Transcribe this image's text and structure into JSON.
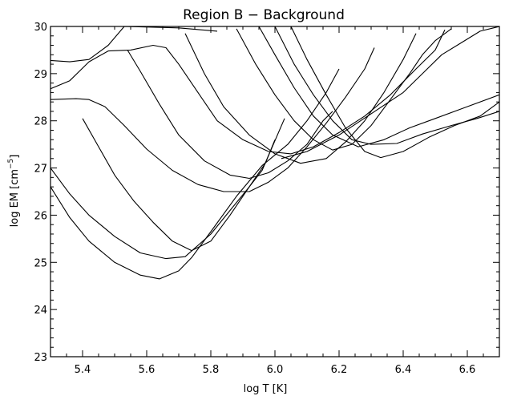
{
  "chart_data": {
    "type": "line",
    "title": "Region B − Background",
    "xlabel_main": "log T ",
    "xlabel_unit": "[K]",
    "ylabel_main": "log EM ",
    "ylabel_unit_base": "[cm",
    "ylabel_unit_exp": "−5",
    "ylabel_unit_close": "]",
    "xlim": [
      5.3,
      6.7
    ],
    "ylim": [
      23,
      30
    ],
    "xticks": [
      5.4,
      5.6,
      5.8,
      6.0,
      6.2,
      6.4,
      6.6
    ],
    "xtick_labels": [
      "5.4",
      "5.6",
      "5.8",
      "6.0",
      "6.2",
      "6.4",
      "6.6"
    ],
    "yticks": [
      23,
      24,
      25,
      26,
      27,
      28,
      29,
      30
    ],
    "ytick_labels": [
      "23",
      "24",
      "25",
      "26",
      "27",
      "28",
      "29",
      "30"
    ],
    "grid": false,
    "legend": "none",
    "line_color": "#000000",
    "series": [
      {
        "points": [
          [
            5.3,
            29.28
          ],
          [
            5.36,
            29.25
          ],
          [
            5.42,
            29.3
          ],
          [
            5.48,
            29.6
          ],
          [
            5.53,
            30.0
          ],
          [
            5.7,
            29.97
          ],
          [
            5.82,
            29.9
          ]
        ]
      },
      {
        "points": [
          [
            5.3,
            28.68
          ],
          [
            5.36,
            28.85
          ],
          [
            5.42,
            29.25
          ],
          [
            5.48,
            29.48
          ],
          [
            5.55,
            29.5
          ],
          [
            5.62,
            29.6
          ],
          [
            5.66,
            29.55
          ],
          [
            5.7,
            29.2
          ],
          [
            5.76,
            28.6
          ],
          [
            5.82,
            28.0
          ],
          [
            5.9,
            27.6
          ],
          [
            5.98,
            27.35
          ],
          [
            6.05,
            27.3
          ],
          [
            6.12,
            27.45
          ],
          [
            6.2,
            27.75
          ],
          [
            6.28,
            28.1
          ],
          [
            6.36,
            28.55
          ],
          [
            6.44,
            29.1
          ],
          [
            6.5,
            29.5
          ],
          [
            6.53,
            29.93
          ]
        ]
      },
      {
        "points": [
          [
            5.3,
            28.45
          ],
          [
            5.38,
            28.47
          ],
          [
            5.42,
            28.45
          ],
          [
            5.47,
            28.3
          ],
          [
            5.53,
            27.9
          ],
          [
            5.6,
            27.4
          ],
          [
            5.68,
            26.95
          ],
          [
            5.76,
            26.65
          ],
          [
            5.84,
            26.5
          ],
          [
            5.92,
            26.5
          ],
          [
            5.98,
            26.7
          ],
          [
            6.04,
            27.0
          ],
          [
            6.1,
            27.45
          ],
          [
            6.16,
            27.95
          ],
          [
            6.22,
            28.5
          ],
          [
            6.28,
            29.1
          ],
          [
            6.31,
            29.55
          ]
        ]
      },
      {
        "points": [
          [
            5.54,
            29.5
          ],
          [
            5.58,
            29.05
          ],
          [
            5.64,
            28.35
          ],
          [
            5.7,
            27.7
          ],
          [
            5.78,
            27.15
          ],
          [
            5.86,
            26.85
          ],
          [
            5.92,
            26.78
          ],
          [
            5.98,
            26.9
          ],
          [
            6.04,
            27.15
          ],
          [
            6.1,
            27.5
          ],
          [
            6.15,
            28.0
          ],
          [
            6.18,
            28.2
          ]
        ]
      },
      {
        "points": [
          [
            5.4,
            28.05
          ],
          [
            5.45,
            27.45
          ],
          [
            5.5,
            26.85
          ],
          [
            5.56,
            26.3
          ],
          [
            5.62,
            25.85
          ],
          [
            5.68,
            25.45
          ],
          [
            5.74,
            25.25
          ],
          [
            5.8,
            25.45
          ],
          [
            5.86,
            26.0
          ],
          [
            5.92,
            26.6
          ],
          [
            5.96,
            26.95
          ],
          [
            6.03,
            28.05
          ]
        ]
      },
      {
        "points": [
          [
            5.3,
            27.0
          ],
          [
            5.36,
            26.45
          ],
          [
            5.42,
            26.0
          ],
          [
            5.5,
            25.55
          ],
          [
            5.58,
            25.2
          ],
          [
            5.66,
            25.08
          ],
          [
            5.72,
            25.12
          ],
          [
            5.8,
            25.6
          ],
          [
            5.86,
            26.1
          ],
          [
            5.92,
            26.6
          ],
          [
            5.97,
            27.1
          ],
          [
            6.0,
            27.6
          ]
        ]
      },
      {
        "points": [
          [
            5.3,
            26.6
          ],
          [
            5.36,
            25.95
          ],
          [
            5.42,
            25.45
          ],
          [
            5.5,
            25.0
          ],
          [
            5.58,
            24.73
          ],
          [
            5.64,
            24.65
          ],
          [
            5.7,
            24.82
          ],
          [
            5.74,
            25.1
          ],
          [
            5.8,
            25.65
          ],
          [
            5.88,
            26.4
          ],
          [
            5.96,
            27.05
          ],
          [
            6.04,
            27.5
          ],
          [
            6.1,
            28.0
          ],
          [
            6.16,
            28.6
          ],
          [
            6.2,
            29.1
          ]
        ]
      },
      {
        "points": [
          [
            5.72,
            29.85
          ],
          [
            5.78,
            29.0
          ],
          [
            5.84,
            28.3
          ],
          [
            5.92,
            27.7
          ],
          [
            6.0,
            27.3
          ],
          [
            6.08,
            27.1
          ],
          [
            6.16,
            27.2
          ],
          [
            6.22,
            27.55
          ],
          [
            6.28,
            28.0
          ],
          [
            6.34,
            28.6
          ],
          [
            6.4,
            29.3
          ],
          [
            6.44,
            29.85
          ]
        ]
      },
      {
        "points": [
          [
            5.88,
            29.95
          ],
          [
            5.94,
            29.2
          ],
          [
            6.0,
            28.55
          ],
          [
            6.06,
            28.0
          ],
          [
            6.12,
            27.6
          ],
          [
            6.18,
            27.38
          ],
          [
            6.24,
            27.5
          ],
          [
            6.3,
            27.9
          ],
          [
            6.36,
            28.45
          ],
          [
            6.42,
            29.0
          ],
          [
            6.46,
            29.4
          ],
          [
            6.5,
            29.7
          ],
          [
            6.55,
            29.95
          ]
        ]
      },
      {
        "points": [
          [
            5.95,
            30.0
          ],
          [
            6.0,
            29.4
          ],
          [
            6.06,
            28.7
          ],
          [
            6.12,
            28.1
          ],
          [
            6.18,
            27.7
          ],
          [
            6.26,
            27.45
          ],
          [
            6.34,
            27.6
          ],
          [
            6.42,
            27.85
          ],
          [
            6.5,
            28.05
          ],
          [
            6.58,
            28.25
          ],
          [
            6.7,
            28.55
          ]
        ]
      },
      {
        "points": [
          [
            6.0,
            30.0
          ],
          [
            6.06,
            29.2
          ],
          [
            6.12,
            28.55
          ],
          [
            6.18,
            28.0
          ],
          [
            6.24,
            27.6
          ],
          [
            6.3,
            27.5
          ],
          [
            6.38,
            27.52
          ],
          [
            6.46,
            27.72
          ],
          [
            6.55,
            27.9
          ],
          [
            6.63,
            28.05
          ],
          [
            6.7,
            28.2
          ]
        ]
      },
      {
        "points": [
          [
            6.05,
            30.0
          ],
          [
            6.1,
            29.3
          ],
          [
            6.16,
            28.55
          ],
          [
            6.22,
            27.85
          ],
          [
            6.28,
            27.35
          ],
          [
            6.33,
            27.22
          ],
          [
            6.4,
            27.35
          ],
          [
            6.48,
            27.65
          ],
          [
            6.56,
            27.9
          ],
          [
            6.64,
            28.1
          ],
          [
            6.7,
            28.4
          ]
        ]
      },
      {
        "points": [
          [
            6.02,
            27.2
          ],
          [
            6.1,
            27.35
          ],
          [
            6.2,
            27.7
          ],
          [
            6.3,
            28.15
          ],
          [
            6.4,
            28.6
          ],
          [
            6.46,
            29.0
          ],
          [
            6.52,
            29.4
          ],
          [
            6.58,
            29.65
          ],
          [
            6.64,
            29.9
          ],
          [
            6.7,
            30.0
          ]
        ]
      }
    ]
  }
}
